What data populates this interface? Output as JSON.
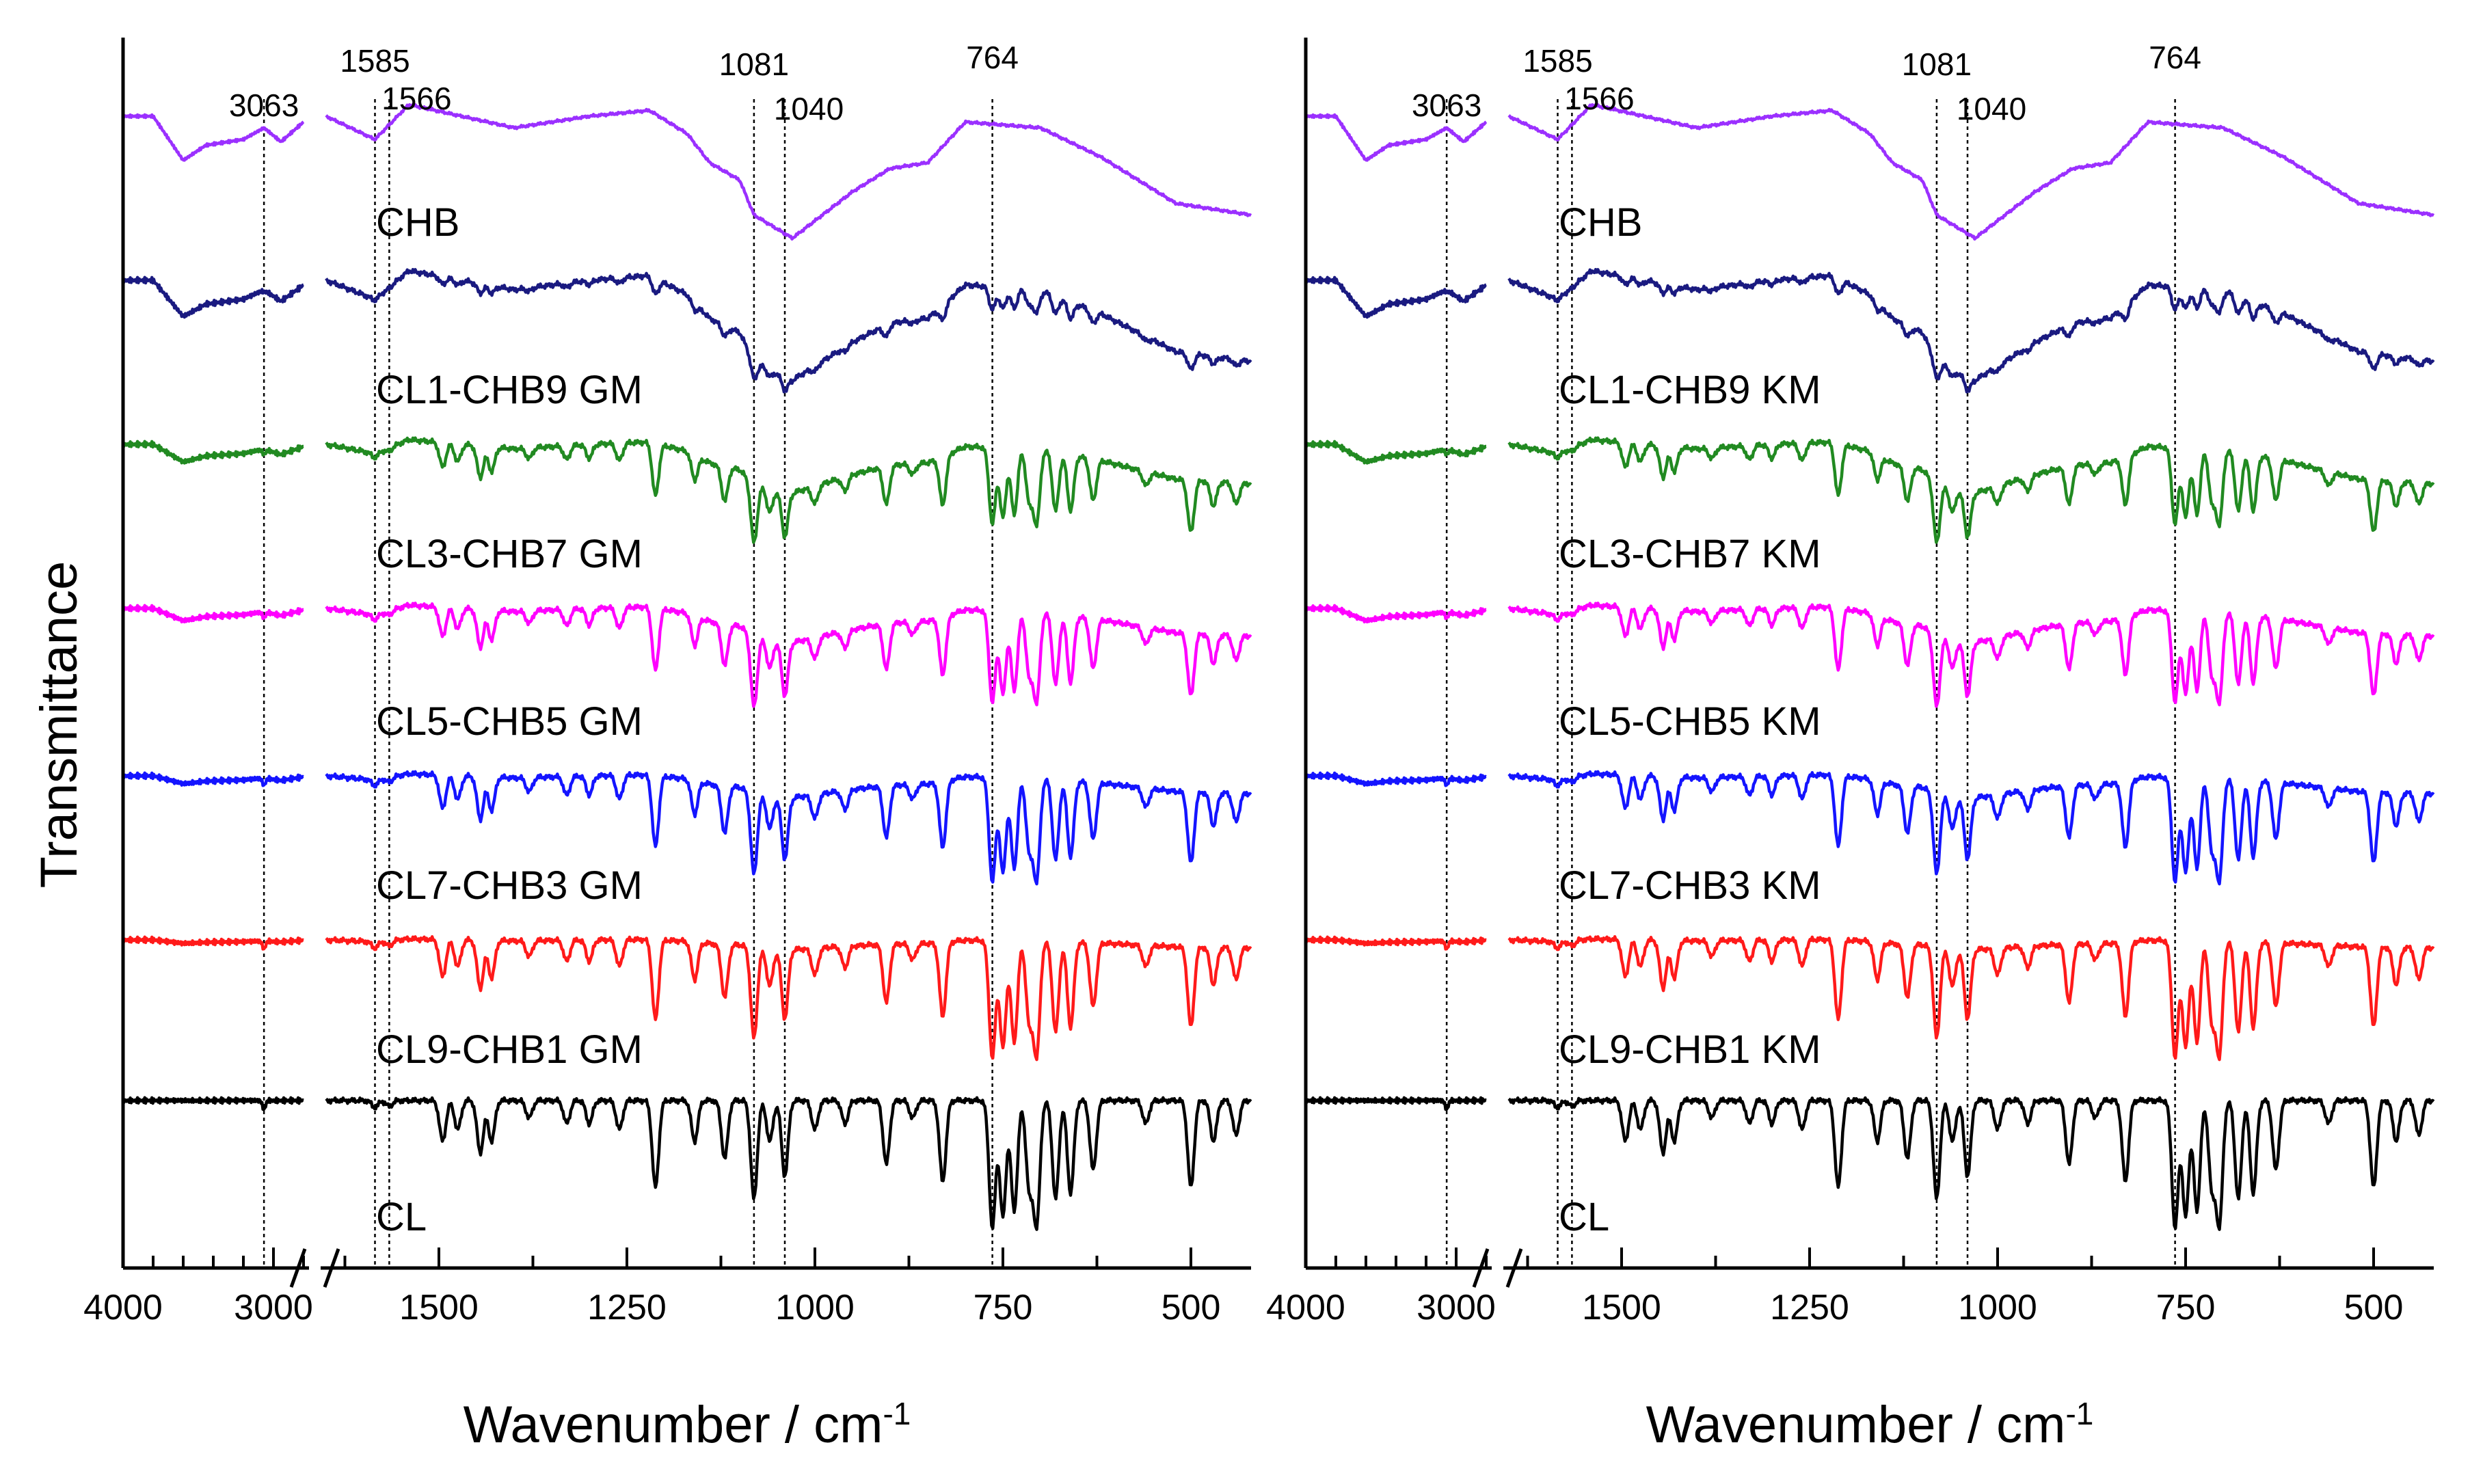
{
  "chart_data": {
    "type": "line",
    "ylabel": "Transmittance",
    "xlabel": "Wavenumber / cm",
    "xlabel_sup": "-1",
    "x_break": [
      2800,
      1650
    ],
    "high_range": [
      4000,
      2800
    ],
    "low_range": [
      1650,
      420
    ],
    "high_ticks": [
      4000,
      3000
    ],
    "low_ticks": [
      1500,
      1250,
      1000,
      750,
      500
    ],
    "peaks": [
      {
        "label": "3063",
        "x": 3063
      },
      {
        "label": "1585",
        "x": 1585
      },
      {
        "label": "1566",
        "x": 1566
      },
      {
        "label": "1081",
        "x": 1081
      },
      {
        "label": "1040",
        "x": 1040
      },
      {
        "label": "764",
        "x": 764
      }
    ],
    "panels": [
      {
        "name": "left",
        "method": "GM",
        "series": [
          {
            "name": "CHB",
            "color": "#9b30ff"
          },
          {
            "name": "CL1-CHB9 GM",
            "color": "#1a1a80"
          },
          {
            "name": "CL3-CHB7 GM",
            "color": "#218a21"
          },
          {
            "name": "CL5-CHB5 GM",
            "color": "#ff00ff"
          },
          {
            "name": "CL7-CHB3 GM",
            "color": "#1414ff"
          },
          {
            "name": "CL9-CHB1 GM",
            "color": "#ff1a1a"
          },
          {
            "name": "CL",
            "color": "#000000"
          }
        ]
      },
      {
        "name": "right",
        "method": "KM",
        "series": [
          {
            "name": "CHB",
            "color": "#9b30ff"
          },
          {
            "name": "CL1-CHB9 KM",
            "color": "#1a1a80"
          },
          {
            "name": "CL3-CHB7 KM",
            "color": "#218a21"
          },
          {
            "name": "CL5-CHB5 KM",
            "color": "#ff00ff"
          },
          {
            "name": "CL7-CHB3 KM",
            "color": "#1414ff"
          },
          {
            "name": "CL9-CHB1 KM",
            "color": "#ff1a1a"
          },
          {
            "name": "CL",
            "color": "#000000"
          }
        ]
      }
    ],
    "cl_bands": [
      {
        "x": 3063,
        "d": 0.08
      },
      {
        "x": 1585,
        "d": 0.06
      },
      {
        "x": 1566,
        "d": 0.05
      },
      {
        "x": 1495,
        "d": 0.35
      },
      {
        "x": 1475,
        "d": 0.25
      },
      {
        "x": 1445,
        "d": 0.45
      },
      {
        "x": 1430,
        "d": 0.35
      },
      {
        "x": 1380,
        "d": 0.15
      },
      {
        "x": 1330,
        "d": 0.2
      },
      {
        "x": 1300,
        "d": 0.2
      },
      {
        "x": 1260,
        "d": 0.25
      },
      {
        "x": 1212,
        "d": 0.75
      },
      {
        "x": 1160,
        "d": 0.35
      },
      {
        "x": 1120,
        "d": 0.5
      },
      {
        "x": 1081,
        "d": 0.85
      },
      {
        "x": 1060,
        "d": 0.35
      },
      {
        "x": 1040,
        "d": 0.65
      },
      {
        "x": 1000,
        "d": 0.25
      },
      {
        "x": 960,
        "d": 0.2
      },
      {
        "x": 905,
        "d": 0.55
      },
      {
        "x": 870,
        "d": 0.15
      },
      {
        "x": 830,
        "d": 0.7
      },
      {
        "x": 764,
        "d": 1.1
      },
      {
        "x": 750,
        "d": 1.0
      },
      {
        "x": 735,
        "d": 0.95
      },
      {
        "x": 715,
        "d": 0.75
      },
      {
        "x": 705,
        "d": 1.05
      },
      {
        "x": 680,
        "d": 0.85
      },
      {
        "x": 660,
        "d": 0.8
      },
      {
        "x": 630,
        "d": 0.6
      },
      {
        "x": 560,
        "d": 0.2
      },
      {
        "x": 500,
        "d": 0.75
      },
      {
        "x": 470,
        "d": 0.35
      },
      {
        "x": 440,
        "d": 0.3
      }
    ],
    "chb_profile": [
      {
        "x": 4000,
        "v": 0.0
      },
      {
        "x": 3800,
        "v": 0.0
      },
      {
        "x": 3600,
        "v": -0.38
      },
      {
        "x": 3450,
        "v": -0.25
      },
      {
        "x": 3200,
        "v": -0.2
      },
      {
        "x": 3063,
        "v": -0.1
      },
      {
        "x": 2950,
        "v": -0.22
      },
      {
        "x": 2800,
        "v": -0.05
      },
      {
        "x": 1650,
        "v": 0.0
      },
      {
        "x": 1585,
        "v": -0.2
      },
      {
        "x": 1540,
        "v": 0.1
      },
      {
        "x": 1400,
        "v": -0.1
      },
      {
        "x": 1300,
        "v": 0.0
      },
      {
        "x": 1220,
        "v": 0.05
      },
      {
        "x": 1170,
        "v": -0.15
      },
      {
        "x": 1140,
        "v": -0.4
      },
      {
        "x": 1100,
        "v": -0.55
      },
      {
        "x": 1081,
        "v": -0.85
      },
      {
        "x": 1030,
        "v": -1.05
      },
      {
        "x": 950,
        "v": -0.65
      },
      {
        "x": 900,
        "v": -0.45
      },
      {
        "x": 850,
        "v": -0.4
      },
      {
        "x": 800,
        "v": -0.05
      },
      {
        "x": 700,
        "v": -0.1
      },
      {
        "x": 620,
        "v": -0.35
      },
      {
        "x": 520,
        "v": -0.75
      },
      {
        "x": 420,
        "v": -0.85
      }
    ]
  }
}
